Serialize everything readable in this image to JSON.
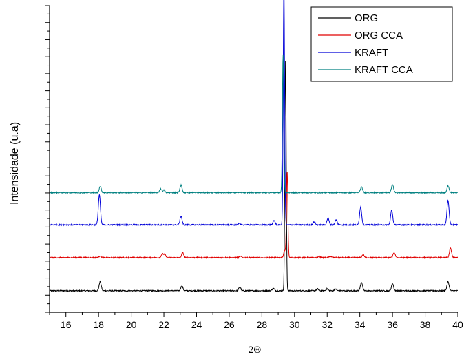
{
  "chart_data": {
    "type": "line",
    "title": "",
    "xlabel": "2Θ",
    "ylabel": "Intensidade (u.a)",
    "xlim": [
      15,
      40
    ],
    "x_ticks": [
      "16",
      "18",
      "20",
      "22",
      "24",
      "26",
      "28",
      "30",
      "32",
      "34",
      "36",
      "38",
      "40"
    ],
    "y_ticks_labeled": false,
    "grid": false,
    "legend_position": "top-right",
    "series": [
      {
        "name": "ORG",
        "color": "#000000",
        "baseline": 0.07,
        "noise": 0.0018,
        "peaks": [
          [
            18.1,
            0.03
          ],
          [
            23.1,
            0.016
          ],
          [
            26.65,
            0.012
          ],
          [
            28.7,
            0.008
          ],
          [
            29.45,
            0.75
          ],
          [
            31.4,
            0.006
          ],
          [
            32.0,
            0.006
          ],
          [
            32.5,
            0.006
          ],
          [
            34.1,
            0.028
          ],
          [
            36.0,
            0.024
          ],
          [
            39.4,
            0.03
          ]
        ]
      },
      {
        "name": "ORG CCA",
        "color": "#e00000",
        "baseline": 0.178,
        "noise": 0.0018,
        "peaks": [
          [
            18.1,
            0.006
          ],
          [
            21.9,
            0.012
          ],
          [
            22.05,
            0.01
          ],
          [
            23.15,
            0.016
          ],
          [
            26.7,
            0.004
          ],
          [
            29.4,
            0.022
          ],
          [
            29.55,
            0.28
          ],
          [
            31.5,
            0.004
          ],
          [
            32.2,
            0.004
          ],
          [
            34.2,
            0.01
          ],
          [
            36.1,
            0.016
          ],
          [
            39.55,
            0.03
          ]
        ]
      },
      {
        "name": "KRAFT",
        "color": "#0000d8",
        "baseline": 0.285,
        "noise": 0.0018,
        "peaks": [
          [
            18.05,
            0.098
          ],
          [
            23.05,
            0.028
          ],
          [
            26.6,
            0.004
          ],
          [
            28.75,
            0.014
          ],
          [
            29.35,
            0.79
          ],
          [
            31.2,
            0.01
          ],
          [
            32.05,
            0.022
          ],
          [
            32.55,
            0.016
          ],
          [
            34.05,
            0.058
          ],
          [
            35.95,
            0.048
          ],
          [
            39.4,
            0.08
          ]
        ]
      },
      {
        "name": "KRAFT CCA",
        "color": "#008080",
        "baseline": 0.39,
        "noise": 0.0018,
        "peaks": [
          [
            18.1,
            0.02
          ],
          [
            21.8,
            0.012
          ],
          [
            22.0,
            0.008
          ],
          [
            23.05,
            0.024
          ],
          [
            29.3,
            0.45
          ],
          [
            34.1,
            0.018
          ],
          [
            36.0,
            0.026
          ],
          [
            39.4,
            0.022
          ]
        ]
      }
    ]
  }
}
